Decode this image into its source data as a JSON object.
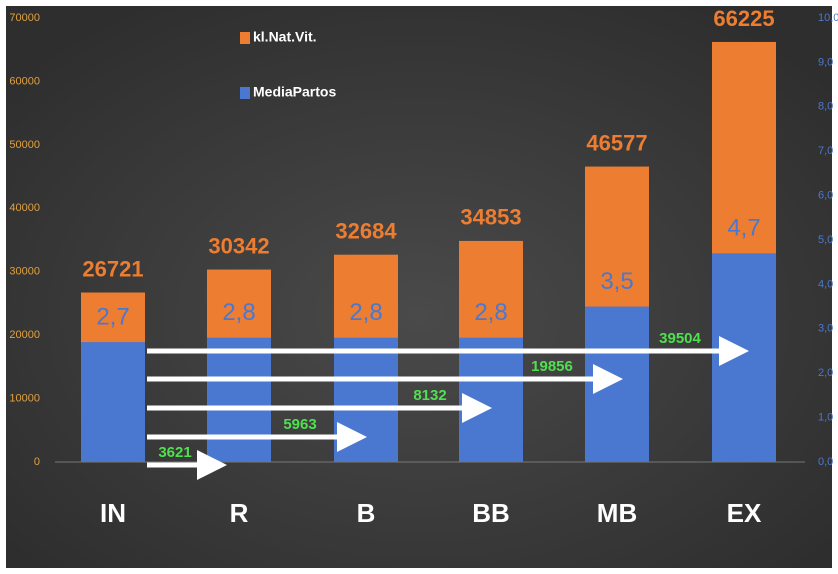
{
  "chart_data": {
    "type": "bar",
    "categories": [
      "IN",
      "R",
      "B",
      "BB",
      "MB",
      "EX"
    ],
    "series": [
      {
        "name": "kl.Nat.Vit.",
        "color": "#ed7d31",
        "values": [
          26721,
          30342,
          32684,
          34853,
          46577,
          66225
        ]
      },
      {
        "name": "MediaPartos",
        "color": "#4a78d0",
        "axis": "y2",
        "values": [
          2.7,
          2.8,
          2.8,
          2.8,
          3.5,
          4.7
        ],
        "value_labels": [
          "2,7",
          "2,8",
          "2,8",
          "2,8",
          "3,5",
          "4,7"
        ]
      }
    ],
    "ylim": [
      0,
      70000
    ],
    "yticks": [
      0,
      10000,
      20000,
      30000,
      40000,
      50000,
      60000,
      70000
    ],
    "y2lim": [
      0,
      10
    ],
    "y2ticks": [
      {
        "value": 0,
        "label": "0,0"
      },
      {
        "value": 1,
        "label": "1,0"
      },
      {
        "value": 2,
        "label": "2,0"
      },
      {
        "value": 3,
        "label": "3,0"
      },
      {
        "value": 4,
        "label": "4,0"
      },
      {
        "value": 5,
        "label": "5,0"
      },
      {
        "value": 6,
        "label": "6,0"
      },
      {
        "value": 7,
        "label": "7,0"
      },
      {
        "value": 8,
        "label": "8,0"
      },
      {
        "value": 9,
        "label": "9,0"
      },
      {
        "value": 10,
        "label": "10,0"
      }
    ],
    "annotations": [
      3621,
      5963,
      8132,
      19856,
      39504
    ],
    "legend": "top-left"
  }
}
